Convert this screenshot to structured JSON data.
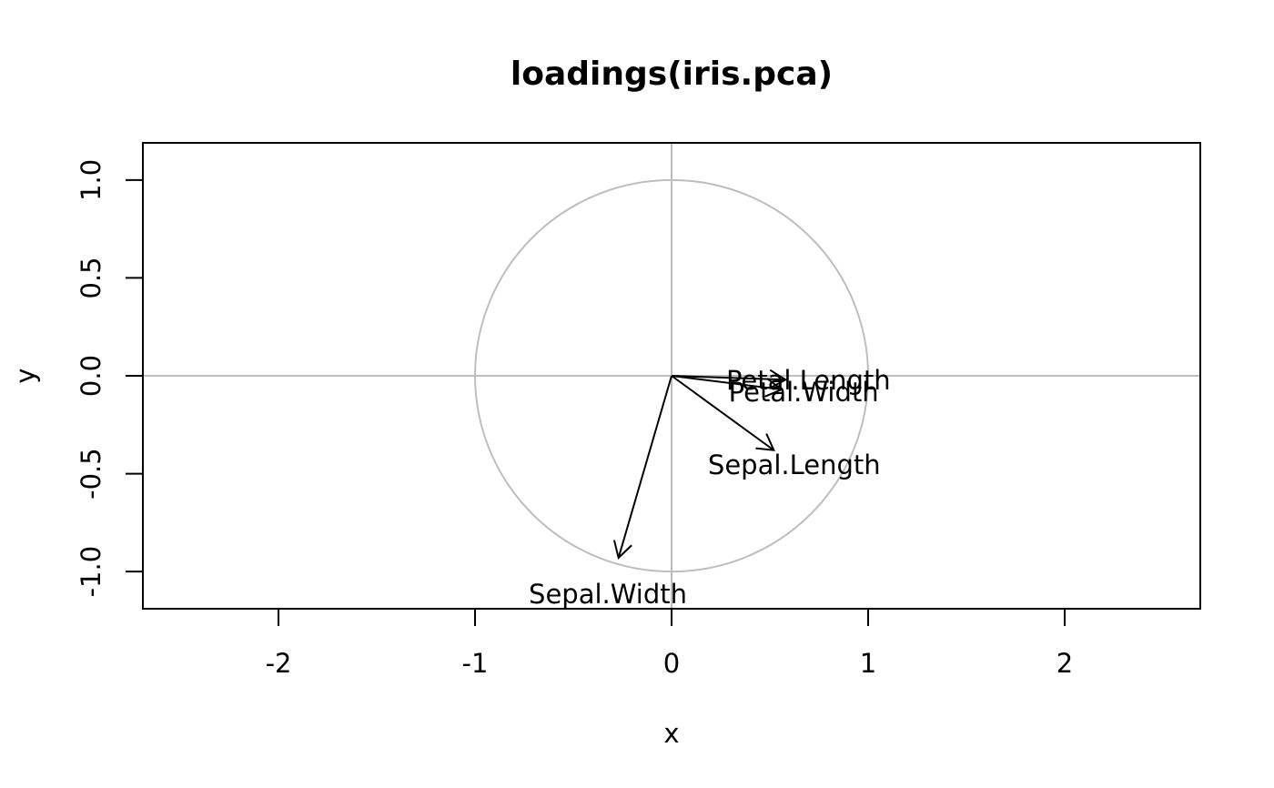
{
  "chart_data": {
    "type": "scatter",
    "title": "loadings(iris.pca)",
    "xlabel": "x",
    "ylabel": "y",
    "xlim": [
      -2.69,
      2.69
    ],
    "ylim": [
      -1.19,
      1.19
    ],
    "x_ticks": [
      {
        "value": -2,
        "label": "-2"
      },
      {
        "value": -1,
        "label": "-1"
      },
      {
        "value": 0,
        "label": "0"
      },
      {
        "value": 1,
        "label": "1"
      },
      {
        "value": 2,
        "label": "2"
      }
    ],
    "y_ticks": [
      {
        "value": -1.0,
        "label": "-1.0"
      },
      {
        "value": -0.5,
        "label": "-0.5"
      },
      {
        "value": 0.0,
        "label": "0.0"
      },
      {
        "value": 0.5,
        "label": "0.5"
      },
      {
        "value": 1.0,
        "label": "1.0"
      }
    ],
    "reference_lines": {
      "x": 0,
      "y": 0,
      "color": "#bebebe"
    },
    "unit_circle": {
      "center": [
        0,
        0
      ],
      "radius": 1,
      "color": "#bebebe"
    },
    "arrows": [
      {
        "name": "Sepal.Length",
        "x": 0.52,
        "y": -0.38
      },
      {
        "name": "Sepal.Width",
        "x": -0.27,
        "y": -0.93
      },
      {
        "name": "Petal.Length",
        "x": 0.58,
        "y": -0.02
      },
      {
        "name": "Petal.Width",
        "x": 0.56,
        "y": -0.07
      }
    ],
    "grid": false,
    "legend": "none"
  }
}
